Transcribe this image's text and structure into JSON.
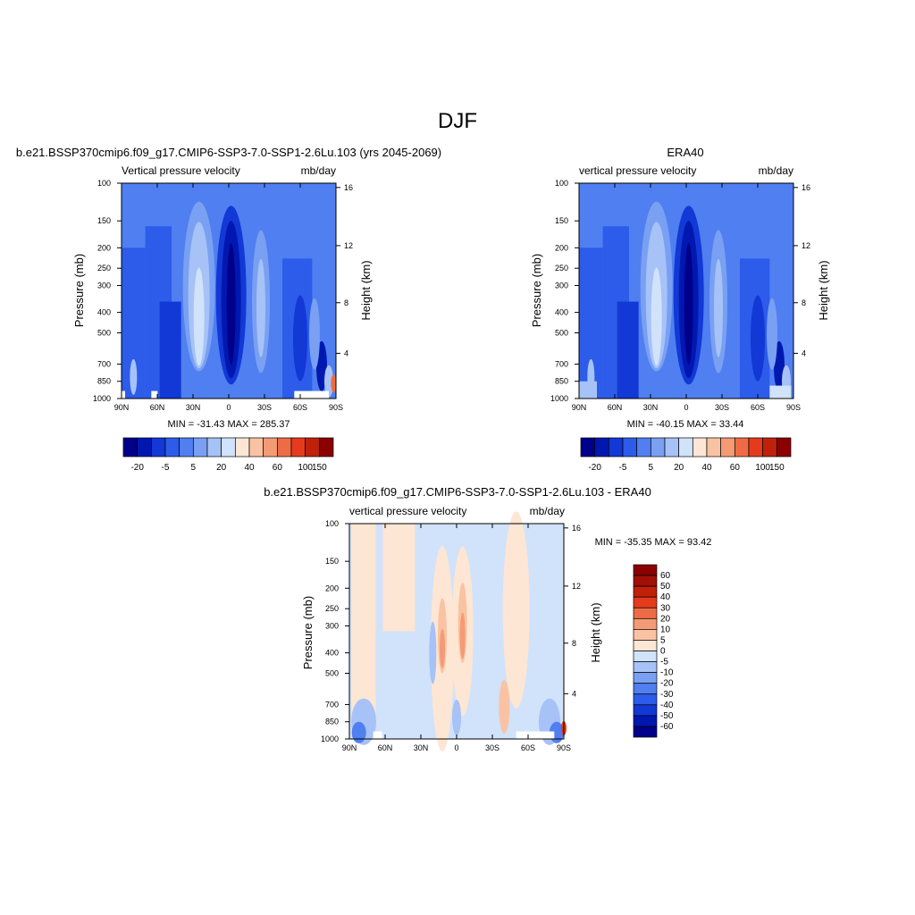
{
  "page": {
    "title": "DJF"
  },
  "colors": {
    "ramp12": [
      "#00008b",
      "#0018b0",
      "#1238d6",
      "#2c5ce9",
      "#4f7ff0",
      "#7aa0f3",
      "#a6c2f7",
      "#d1e2fb",
      "#fde6d3",
      "#f9c3a3",
      "#f49b76",
      "#ee6c45",
      "#e53b1c",
      "#c0210b",
      "#8b0000"
    ],
    "diff16": [
      "#00008b",
      "#0018b0",
      "#1238d6",
      "#2c5ce9",
      "#4f7ff0",
      "#7aa0f3",
      "#a6c2f7",
      "#d1e2fb",
      "#fde6d3",
      "#f9c3a3",
      "#f49b76",
      "#ee6c45",
      "#e53b1c",
      "#c0210b",
      "#a01005",
      "#8b0000"
    ]
  },
  "chart_data": [
    {
      "type": "heatmap",
      "title": "b.e21.BSSP370cmip6.f09_g17.CMIP6-SSP3-7.0-SSP1-2.6Lu.103 (yrs 2045-2069)",
      "left_label": "Vertical pressure velocity",
      "right_label": "mb/day",
      "ylabel": "Pressure (mb)",
      "y2label": "Height (km)",
      "xticks": [
        "90N",
        "60N",
        "30N",
        "0",
        "30S",
        "60S",
        "90S"
      ],
      "yticks": [
        "100",
        "150",
        "200",
        "250",
        "300",
        "400",
        "500",
        "700",
        "850",
        "1000"
      ],
      "y2ticks": [
        "16",
        "12",
        "8",
        "4"
      ],
      "stats": "MIN = -31.43  MAX = 285.37",
      "colorbar_labels": [
        "-20",
        "-5",
        "5",
        "20",
        "40",
        "60",
        "100",
        "150"
      ],
      "colorbar_bins": 15
    },
    {
      "type": "heatmap",
      "title": "ERA40",
      "left_label": "vertical pressure velocity",
      "right_label": "mb/day",
      "ylabel": "Pressure (mb)",
      "y2label": "Height (km)",
      "xticks": [
        "90N",
        "60N",
        "30N",
        "0",
        "30S",
        "60S",
        "90S"
      ],
      "yticks": [
        "100",
        "150",
        "200",
        "250",
        "300",
        "400",
        "500",
        "700",
        "850",
        "1000"
      ],
      "y2ticks": [
        "16",
        "12",
        "8",
        "4"
      ],
      "stats": "MIN = -40.15  MAX =  33.44",
      "colorbar_labels": [
        "-20",
        "-5",
        "5",
        "20",
        "40",
        "60",
        "100",
        "150"
      ],
      "colorbar_bins": 15
    },
    {
      "type": "heatmap",
      "title": "b.e21.BSSP370cmip6.f09_g17.CMIP6-SSP3-7.0-SSP1-2.6Lu.103 - ERA40",
      "left_label": "vertical pressure velocity",
      "right_label": "mb/day",
      "ylabel": "Pressure (mb)",
      "y2label": "Height (km)",
      "xticks": [
        "90N",
        "60N",
        "30N",
        "0",
        "30S",
        "60S",
        "90S"
      ],
      "yticks": [
        "100",
        "150",
        "200",
        "250",
        "300",
        "400",
        "500",
        "700",
        "850",
        "1000"
      ],
      "y2ticks": [
        "16",
        "12",
        "8",
        "4"
      ],
      "stats": "MIN = -35.35  MAX =  93.42",
      "colorbar_labels": [
        "60",
        "50",
        "40",
        "30",
        "20",
        "10",
        "5",
        "0",
        "-5",
        "-10",
        "-20",
        "-30",
        "-40",
        "-50",
        "-60"
      ],
      "colorbar_bins": 16
    }
  ]
}
